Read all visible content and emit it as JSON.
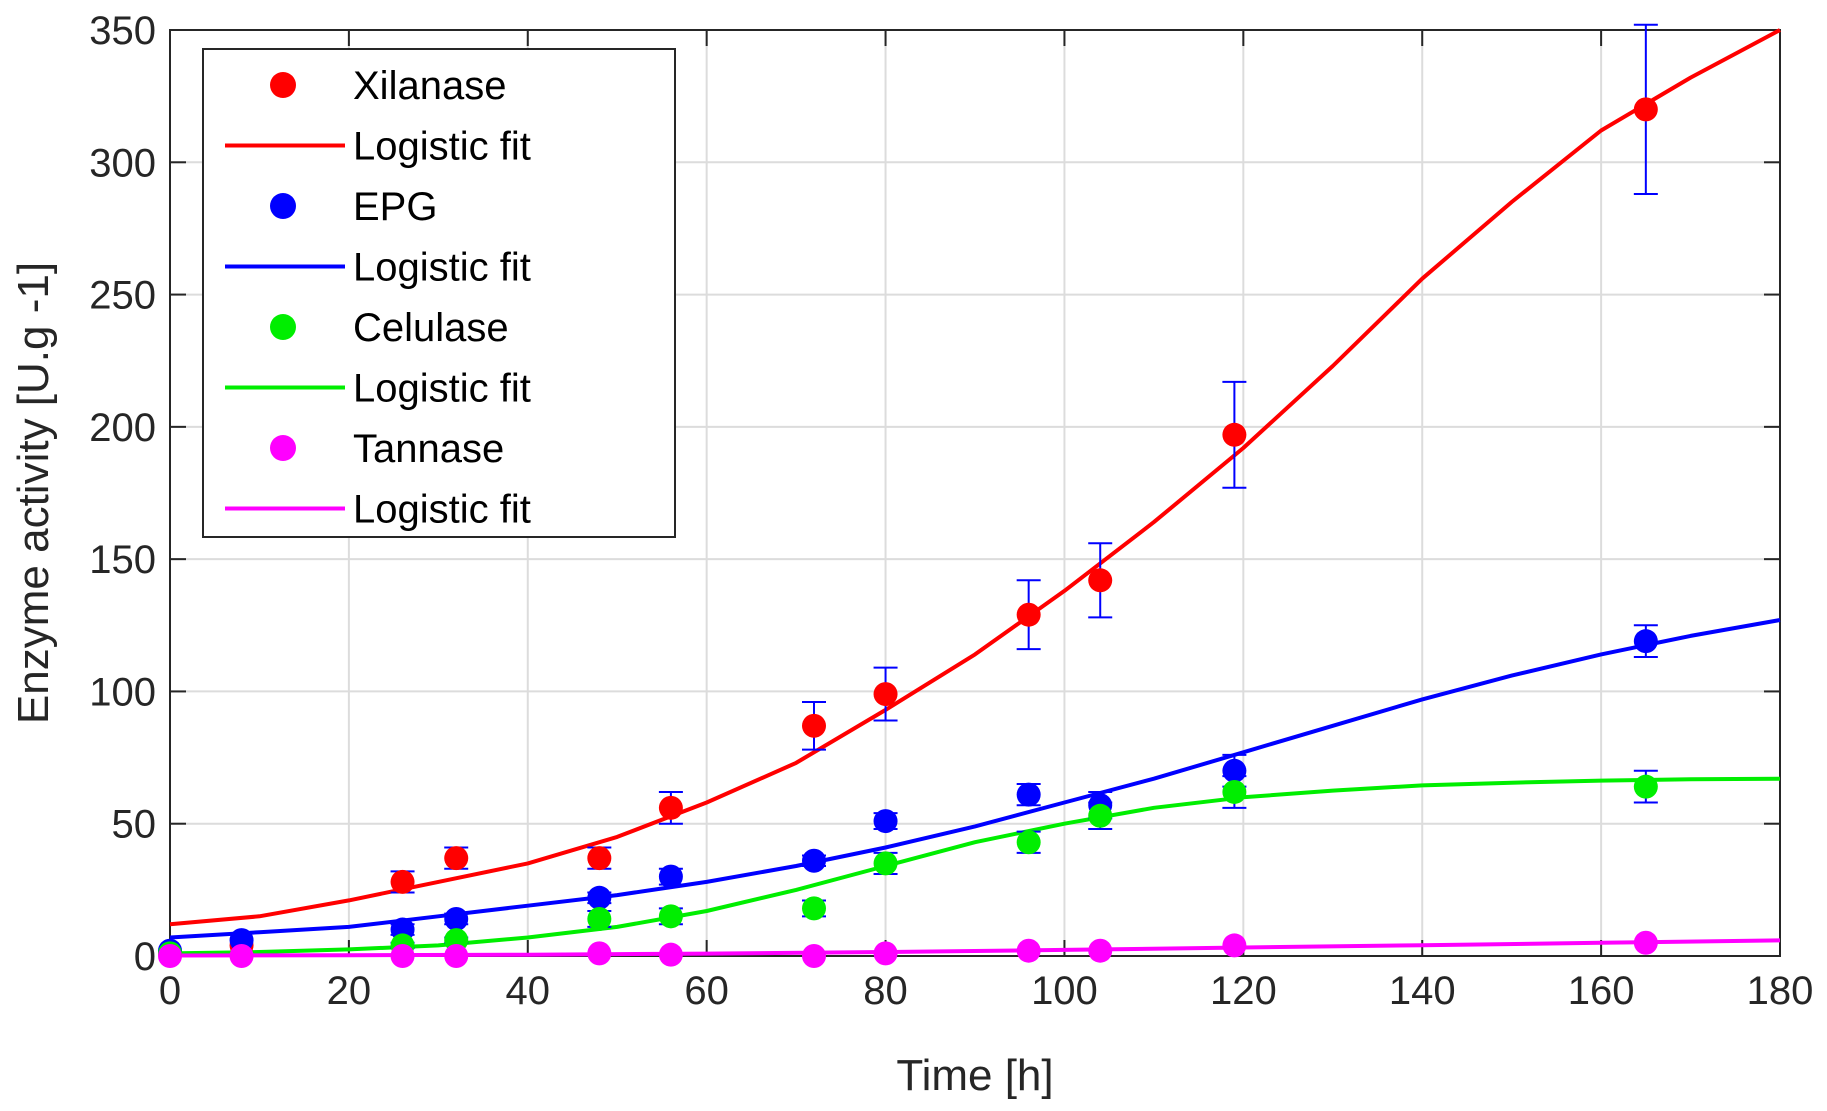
{
  "chart_data": {
    "type": "scatter",
    "title": "",
    "xlabel": "Time [h]",
    "ylabel": "Enzyme activity [U.g -1]",
    "xlim": [
      0,
      180
    ],
    "ylim": [
      0,
      350
    ],
    "xticks": [
      0,
      20,
      40,
      60,
      80,
      100,
      120,
      140,
      160,
      180
    ],
    "yticks": [
      0,
      50,
      100,
      150,
      200,
      250,
      300,
      350
    ],
    "grid": true,
    "legend_position": "top-left",
    "error_bar_color": "#0000ff",
    "series": [
      {
        "name": "Xilanase",
        "color": "#ff0000",
        "x": [
          0,
          8,
          26,
          32,
          48,
          56,
          72,
          80,
          96,
          104,
          119,
          165
        ],
        "y": [
          1,
          4,
          28,
          37,
          37,
          56,
          87,
          99,
          129,
          142,
          197,
          320
        ],
        "err": [
          0,
          0,
          4,
          4,
          4,
          6,
          9,
          10,
          13,
          14,
          20,
          32
        ]
      },
      {
        "name": "EPG",
        "color": "#0000ff",
        "x": [
          0,
          8,
          26,
          32,
          48,
          56,
          72,
          80,
          96,
          104,
          119,
          165
        ],
        "y": [
          2,
          6,
          10,
          14,
          22,
          30,
          36,
          51,
          61,
          57,
          70,
          119
        ],
        "err": [
          0,
          0,
          2,
          2,
          2,
          3,
          2,
          3,
          4,
          5,
          6,
          6
        ]
      },
      {
        "name": "Celulase",
        "color": "#00ee00",
        "x": [
          0,
          26,
          32,
          48,
          56,
          72,
          80,
          96,
          104,
          119,
          165
        ],
        "y": [
          1,
          4,
          6,
          14,
          15,
          18,
          35,
          43,
          53,
          62,
          64
        ],
        "err": [
          0,
          1,
          1,
          3,
          3,
          3,
          4,
          4,
          5,
          6,
          6
        ]
      },
      {
        "name": "Tannase",
        "color": "#ff00ff",
        "x": [
          0,
          8,
          26,
          32,
          48,
          56,
          72,
          80,
          96,
          104,
          119,
          165
        ],
        "y": [
          0,
          0,
          0,
          0,
          1,
          0.5,
          0,
          1,
          2,
          2,
          4,
          5
        ],
        "err": [
          0,
          0,
          0,
          0,
          0,
          0,
          0,
          0,
          0,
          0,
          0,
          0
        ]
      }
    ],
    "fits": [
      {
        "name": "Logistic fit",
        "color": "#ff0000",
        "x": [
          0,
          10,
          20,
          30,
          40,
          50,
          60,
          70,
          80,
          90,
          100,
          110,
          120,
          130,
          140,
          150,
          160,
          170,
          180
        ],
        "y": [
          12,
          15,
          21,
          28,
          35,
          45,
          58,
          73,
          93,
          114,
          138,
          164,
          192,
          223,
          256,
          285,
          312,
          332,
          350
        ]
      },
      {
        "name": "Logistic fit",
        "color": "#0000ff",
        "x": [
          0,
          10,
          20,
          30,
          40,
          50,
          60,
          70,
          80,
          90,
          100,
          110,
          120,
          130,
          140,
          150,
          160,
          170,
          180
        ],
        "y": [
          7,
          9,
          11,
          15,
          19,
          23,
          28,
          34,
          41,
          49,
          58,
          67,
          77,
          87,
          97,
          106,
          114,
          121,
          127
        ]
      },
      {
        "name": "Logistic fit",
        "color": "#00ee00",
        "x": [
          0,
          10,
          20,
          30,
          40,
          50,
          60,
          70,
          80,
          90,
          100,
          110,
          120,
          130,
          140,
          150,
          160,
          170,
          180
        ],
        "y": [
          1,
          1.5,
          2.5,
          4,
          7,
          11,
          17,
          25,
          34,
          43,
          50,
          56,
          60,
          62.5,
          64.5,
          65.5,
          66.3,
          66.8,
          67
        ]
      },
      {
        "name": "Logistic fit",
        "color": "#ff00ff",
        "x": [
          0,
          20,
          40,
          60,
          80,
          100,
          120,
          140,
          160,
          180
        ],
        "y": [
          0.2,
          0.3,
          0.5,
          0.9,
          1.5,
          2.3,
          3.2,
          4.1,
          5,
          5.9
        ]
      }
    ]
  }
}
